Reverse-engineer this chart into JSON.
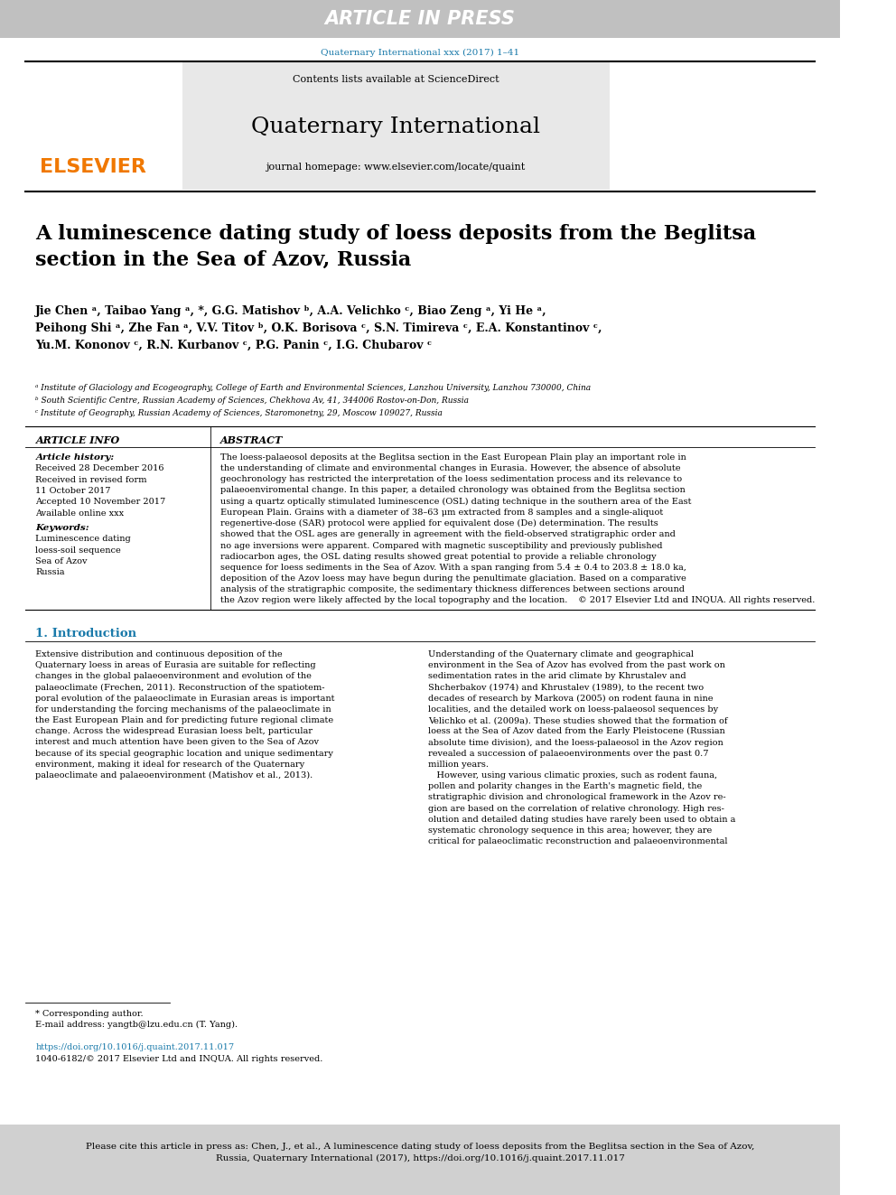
{
  "bg_color": "#ffffff",
  "header_bar_color": "#c0c0c0",
  "header_text": "ARTICLE IN PRESS",
  "header_text_color": "#ffffff",
  "journal_ref_color": "#1a7aaa",
  "journal_ref": "Quaternary International xxx (2017) 1–41",
  "elsevier_color": "#f07800",
  "elsevier_text": "ELSEVIER",
  "journal_header_bg": "#e8e8e8",
  "journal_title": "Quaternary International",
  "contents_text": "Contents lists available at ",
  "sciencedirect_text": "ScienceDirect",
  "sciencedirect_color": "#1a7aaa",
  "homepage_text": "journal homepage: ",
  "homepage_url": "www.elsevier.com/locate/quaint",
  "homepage_url_color": "#1a7aaa",
  "article_title": "A luminescence dating study of loess deposits from the Beglitsa\nsection in the Sea of Azov, Russia",
  "authors_line1": "Jie Chen ᵃ, Taibao Yang ᵃ, *, G.G. Matishov ᵇ, A.A. Velichko ᶜ, Biao Zeng ᵃ, Yi He ᵃ,",
  "authors_line2": "Peihong Shi ᵃ, Zhe Fan ᵃ, V.V. Titov ᵇ, O.K. Borisova ᶜ, S.N. Timireva ᶜ, E.A. Konstantinov ᶜ,",
  "authors_line3": "Yu.M. Kononov ᶜ, R.N. Kurbanov ᶜ, P.G. Panin ᶜ, I.G. Chubarov ᶜ",
  "affil_a": "ᵃ Institute of Glaciology and Ecogeography, College of Earth and Environmental Sciences, Lanzhou University, Lanzhou 730000, China",
  "affil_b": "ᵇ South Scientific Centre, Russian Academy of Sciences, Chekhova Av, 41, 344006 Rostov-on-Don, Russia",
  "affil_c": "ᶜ Institute of Geography, Russian Academy of Sciences, Staromonetny, 29, Moscow 109027, Russia",
  "article_info_title": "ARTICLE INFO",
  "article_history_title": "Article history:",
  "received": "Received 28 December 2016",
  "received_revised": "Received in revised form\n11 October 2017",
  "accepted": "Accepted 10 November 2017",
  "available": "Available online xxx",
  "keywords_title": "Keywords:",
  "keyword1": "Luminescence dating",
  "keyword2": "loess-soil sequence",
  "keyword3": "Sea of Azov",
  "keyword4": "Russia",
  "abstract_title": "ABSTRACT",
  "abstract_text": "The loess-palaeosol deposits at the Beglitsa section in the East European Plain play an important role in\nthe understanding of climate and environmental changes in Eurasia. However, the absence of absolute\ngeochronology has restricted the interpretation of the loess sedimentation process and its relevance to\npalaeoenviromental change. In this paper, a detailed chronology was obtained from the Beglitsa section\nusing a quartz optically stimulated luminescence (OSL) dating technique in the southern area of the East\nEuropean Plain. Grains with a diameter of 38–63 μm extracted from 8 samples and a single-aliquot\nregenertive-dose (SAR) protocol were applied for equivalent dose (De) determination. The results\nshowed that the OSL ages are generally in agreement with the field-observed stratigraphic order and\nno age inversions were apparent. Compared with magnetic susceptibility and previously published\nradiocarbon ages, the OSL dating results showed great potential to provide a reliable chronology\nsequence for loess sediments in the Sea of Azov. With a span ranging from 5.4 ± 0.4 to 203.8 ± 18.0 ka,\ndeposition of the Azov loess may have begun during the penultimate glaciation. Based on a comparative\nanalysis of the stratigraphic composite, the sedimentary thickness differences between sections around\nthe Azov region were likely affected by the local topography and the location.",
  "copyright": "© 2017 Elsevier Ltd and INQUA. All rights reserved.",
  "intro_title": "1. Introduction",
  "intro_col1": "Extensive distribution and continuous deposition of the\nQuaternary loess in areas of Eurasia are suitable for reflecting\nchanges in the global palaeoenvironment and evolution of the\npalaeoclimate (Frechen, 2011). Reconstruction of the spatiotem-\nporal evolution of the palaeoclimate in Eurasian areas is important\nfor understanding the forcing mechanisms of the palaeoclimate in\nthe East European Plain and for predicting future regional climate\nchange. Across the widespread Eurasian loess belt, particular\ninterest and much attention have been given to the Sea of Azov\nbecause of its special geographic location and unique sedimentary\nenvironment, making it ideal for research of the Quaternary\npalaeoclimate and palaeoenvironment (Matishov et al., 2013).",
  "intro_col2": "Understanding of the Quaternary climate and geographical\nenvironment in the Sea of Azov has evolved from the past work on\nsedimentation rates in the arid climate by Khrustalev and\nShcherbakov (1974) and Khrustalev (1989), to the recent two\ndecades of research by Markova (2005) on rodent fauna in nine\nlocalities, and the detailed work on loess-palaeosol sequences by\nVelichko et al. (2009a). These studies showed that the formation of\nloess at the Sea of Azov dated from the Early Pleistocene (Russian\nabsolute time division), and the loess-palaeosol in the Azov region\nrevealed a succession of palaeoenvironments over the past 0.7\nmillion years.\n   However, using various climatic proxies, such as rodent fauna,\npollen and polarity changes in the Earth's magnetic field, the\nstratigraphic division and chronological framework in the Azov re-\ngion are based on the correlation of relative chronology. High res-\nolution and detailed dating studies have rarely been used to obtain a\nsystematic chronology sequence in this area; however, they are\ncritical for palaeoclimatic reconstruction and palaeoenvironmental",
  "footnote_star": "* Corresponding author.",
  "footnote_email": "E-mail address: yangtb@lzu.edu.cn (T. Yang).",
  "doi_text": "https://doi.org/10.1016/j.quaint.2017.11.017",
  "issn_text": "1040-6182/© 2017 Elsevier Ltd and INQUA. All rights reserved.",
  "footer_text": "Please cite this article in press as: Chen, J., et al., A luminescence dating study of loess deposits from the Beglitsa section in the Sea of Azov,\nRussia, Quaternary International (2017), https://doi.org/10.1016/j.quaint.2017.11.017",
  "separator_color": "#000000",
  "link_color": "#1a7aaa"
}
